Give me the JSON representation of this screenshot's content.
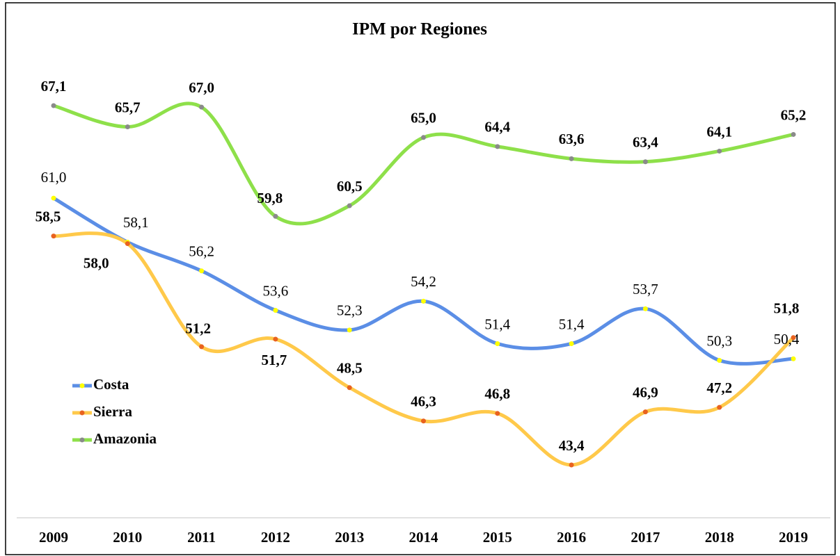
{
  "chart_data": {
    "type": "line",
    "title": "IPM por Regiones",
    "categories": [
      "2009",
      "2010",
      "2011",
      "2012",
      "2013",
      "2014",
      "2015",
      "2016",
      "2017",
      "2018",
      "2019"
    ],
    "series": [
      {
        "name": "Costa",
        "color": "#5b8ee6",
        "marker_color": "#ffff00",
        "values": [
          61.0,
          58.1,
          56.2,
          53.6,
          52.3,
          54.2,
          51.4,
          51.4,
          53.7,
          50.3,
          50.4
        ],
        "value_labels": [
          "61,0",
          "58,1",
          "56,2",
          "53,6",
          "52,3",
          "54,2",
          "51,4",
          "51,4",
          "53,7",
          "50,3",
          "50,4"
        ]
      },
      {
        "name": "Sierra",
        "color": "#ffc94a",
        "marker_color": "#e8621f",
        "values": [
          58.5,
          58.0,
          51.2,
          51.7,
          48.5,
          46.3,
          46.8,
          43.4,
          46.9,
          47.2,
          51.8
        ],
        "value_labels": [
          "58,5",
          "58,0",
          "51,2",
          "51,7",
          "48,5",
          "46,3",
          "46,8",
          "43,4",
          "46,9",
          "47,2",
          "51,8"
        ]
      },
      {
        "name": "Amazonia",
        "color": "#8ee04a",
        "marker_color": "#8a8a8a",
        "values": [
          67.1,
          65.7,
          67.0,
          59.8,
          60.5,
          65.0,
          64.4,
          63.6,
          63.4,
          64.1,
          65.2
        ],
        "value_labels": [
          "67,1",
          "65,7",
          "67,0",
          "59,8",
          "60,5",
          "65,0",
          "64,4",
          "63,6",
          "63,4",
          "64,1",
          "65,2"
        ]
      }
    ]
  }
}
